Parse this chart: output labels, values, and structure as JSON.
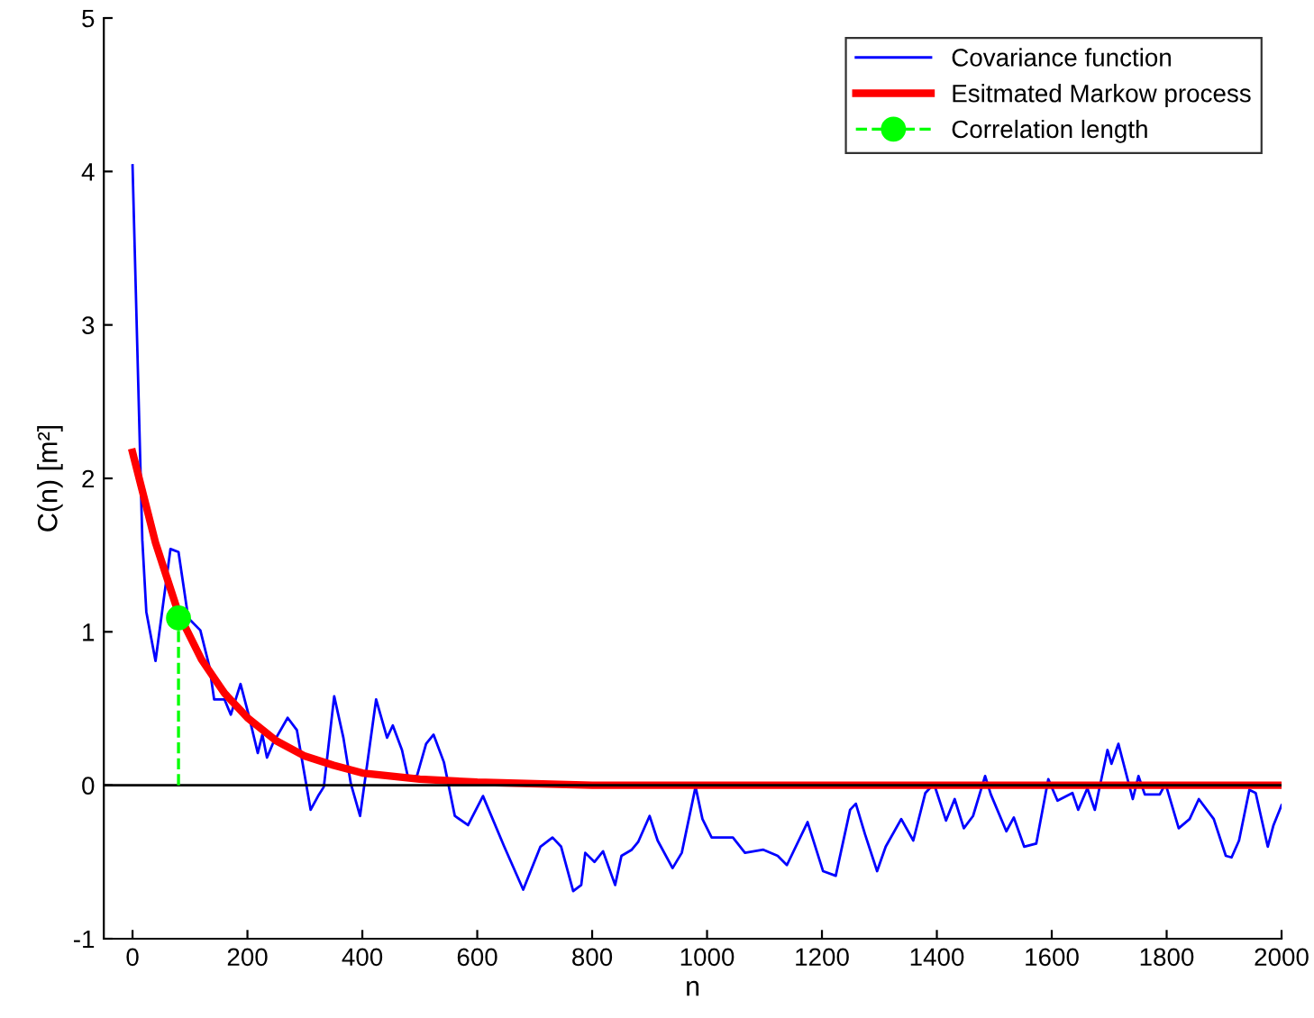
{
  "chart_data": {
    "type": "line",
    "xlabel": "n",
    "ylabel": "C(n) [m²]",
    "xlim": [
      -50,
      2000
    ],
    "ylim": [
      -1,
      5
    ],
    "xticks": [
      0,
      200,
      400,
      600,
      800,
      1000,
      1200,
      1400,
      1600,
      1800,
      2000
    ],
    "yticks": [
      -1,
      0,
      1,
      2,
      3,
      4,
      5
    ],
    "grid": false,
    "legend": "top right",
    "ref_lines": [
      {
        "axis": "y",
        "value": 0,
        "color": "#000000",
        "line_style": "solid"
      }
    ],
    "series": [
      {
        "name": "Covariance function",
        "color": "#0000ff",
        "line_style": "solid",
        "marker": "none",
        "x": [
          0,
          17,
          24,
          40,
          66,
          80,
          97,
          118,
          134,
          142,
          160,
          171,
          188,
          202,
          218,
          226,
          234,
          244,
          270,
          286,
          310,
          323,
          333,
          351,
          367,
          380,
          396,
          424,
          443,
          453,
          469,
          479,
          495,
          511,
          524,
          542,
          561,
          584,
          610,
          647,
          680,
          710,
          731,
          746,
          767,
          781,
          788,
          804,
          819,
          840,
          851,
          869,
          880,
          900,
          914,
          940,
          956,
          980,
          992,
          1008,
          1045,
          1066,
          1098,
          1123,
          1139,
          1175,
          1202,
          1224,
          1249,
          1259,
          1275,
          1296,
          1311,
          1338,
          1359,
          1380,
          1395,
          1416,
          1431,
          1447,
          1463,
          1484,
          1494,
          1521,
          1534,
          1552,
          1573,
          1594,
          1610,
          1636,
          1646,
          1662,
          1675,
          1697,
          1704,
          1716,
          1741,
          1751,
          1762,
          1788,
          1798,
          1821,
          1840,
          1856,
          1882,
          1903,
          1913,
          1926,
          1944,
          1955,
          1976,
          1986,
          2000
        ],
        "values": [
          4.04,
          1.6,
          1.13,
          0.81,
          1.54,
          1.52,
          1.09,
          1.01,
          0.77,
          0.56,
          0.56,
          0.46,
          0.66,
          0.46,
          0.21,
          0.33,
          0.18,
          0.27,
          0.44,
          0.36,
          -0.16,
          -0.07,
          -0.01,
          0.58,
          0.31,
          0.01,
          -0.2,
          0.56,
          0.31,
          0.39,
          0.23,
          0.06,
          0.06,
          0.27,
          0.33,
          0.15,
          -0.2,
          -0.26,
          -0.07,
          -0.4,
          -0.68,
          -0.4,
          -0.34,
          -0.4,
          -0.69,
          -0.65,
          -0.44,
          -0.5,
          -0.43,
          -0.65,
          -0.46,
          -0.42,
          -0.37,
          -0.2,
          -0.36,
          -0.54,
          -0.44,
          -0.01,
          -0.22,
          -0.34,
          -0.34,
          -0.44,
          -0.42,
          -0.46,
          -0.52,
          -0.24,
          -0.56,
          -0.59,
          -0.16,
          -0.12,
          -0.32,
          -0.56,
          -0.4,
          -0.22,
          -0.36,
          -0.05,
          0.01,
          -0.23,
          -0.09,
          -0.28,
          -0.2,
          0.06,
          -0.06,
          -0.3,
          -0.21,
          -0.4,
          -0.38,
          0.04,
          -0.1,
          -0.05,
          -0.16,
          -0.02,
          -0.16,
          0.23,
          0.14,
          0.27,
          -0.09,
          0.06,
          -0.06,
          -0.06,
          0.01,
          -0.28,
          -0.22,
          -0.09,
          -0.22,
          -0.46,
          -0.47,
          -0.36,
          -0.03,
          -0.05,
          -0.4,
          -0.26,
          -0.13
        ]
      },
      {
        "name": "Esitmated Markow process",
        "color": "#ff0000",
        "line_style": "solid",
        "marker": "none",
        "x": [
          0,
          40,
          80,
          120,
          160,
          200,
          250,
          300,
          350,
          400,
          500,
          600,
          800,
          1000,
          2000
        ],
        "values": [
          2.17,
          1.58,
          1.12,
          0.82,
          0.6,
          0.44,
          0.29,
          0.19,
          0.13,
          0.08,
          0.04,
          0.02,
          0.0,
          0.0,
          0.0
        ]
      },
      {
        "name": "Correlation length",
        "color": "#00ff00",
        "line_style": "dashed",
        "marker": "circle",
        "x": [
          80,
          80
        ],
        "values": [
          0,
          1.09
        ]
      }
    ]
  }
}
